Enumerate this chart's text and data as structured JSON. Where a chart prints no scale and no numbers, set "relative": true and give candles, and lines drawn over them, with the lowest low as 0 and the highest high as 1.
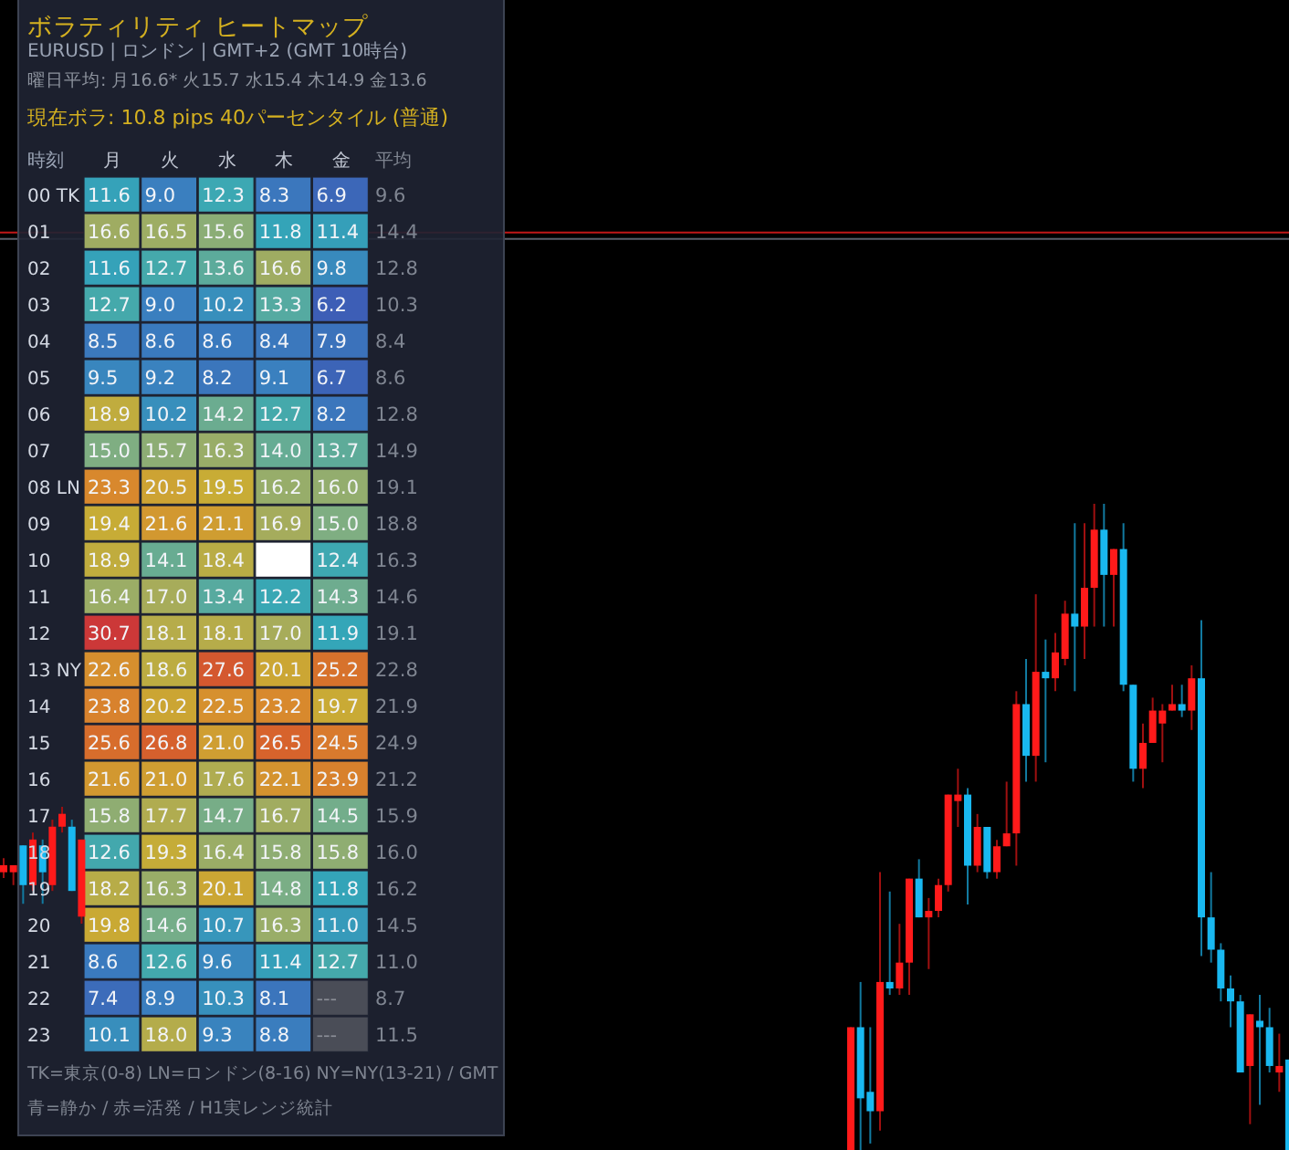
{
  "chart_data": [
    {
      "type": "heatmap",
      "title": "ボラティリティ ヒートマップ",
      "subtitle": "EURUSD | ロンドン | GMT+2 (GMT 10時台)",
      "annotations": [
        "曜日平均: 月16.6* 火15.7 水15.4 木14.9 金13.6",
        "現在ボラ: 10.8 pips  40パーセンタイル (普通)",
        "TK=東京(0-8) LN=ロンドン(8-16) NY=NY(13-21) / GMT",
        "青=静か / 赤=活発 / H1実レンジ統計"
      ],
      "ylabel": "時刻",
      "y2label": "平均",
      "categories": [
        "月",
        "火",
        "水",
        "木",
        "金"
      ],
      "y_categories": [
        "00 TK",
        "01",
        "02",
        "03",
        "04",
        "05",
        "06",
        "07",
        "08 LN",
        "09",
        "10",
        "11",
        "12",
        "13 NY",
        "14",
        "15",
        "16",
        "17",
        "18",
        "19",
        "20",
        "21",
        "22",
        "23"
      ],
      "y2_categories": [
        "9.6",
        "14.4",
        "12.8",
        "10.3",
        "8.4",
        "8.6",
        "12.8",
        "14.9",
        "19.1",
        "18.8",
        "16.3",
        "14.6",
        "19.1",
        "22.8",
        "21.9",
        "24.9",
        "21.2",
        "15.9",
        "16.0",
        "16.2",
        "14.5",
        "11.0",
        "8.7",
        "11.5"
      ],
      "cells": [
        [
          11.6,
          9.0,
          12.3,
          8.3,
          6.9
        ],
        [
          16.6,
          16.5,
          15.6,
          11.8,
          11.4
        ],
        [
          11.6,
          12.7,
          13.6,
          16.6,
          9.8
        ],
        [
          12.7,
          9.0,
          10.2,
          13.3,
          6.2
        ],
        [
          8.5,
          8.6,
          8.6,
          8.4,
          7.9
        ],
        [
          9.5,
          9.2,
          8.2,
          9.1,
          6.7
        ],
        [
          18.9,
          10.2,
          14.2,
          12.7,
          8.2
        ],
        [
          15.0,
          15.7,
          16.3,
          14.0,
          13.7
        ],
        [
          23.3,
          20.5,
          19.5,
          16.2,
          16.0
        ],
        [
          19.4,
          21.6,
          21.1,
          16.9,
          15.0
        ],
        [
          18.9,
          14.1,
          18.4,
          null,
          12.4
        ],
        [
          16.4,
          17.0,
          13.4,
          12.2,
          14.3
        ],
        [
          30.7,
          18.1,
          18.1,
          17.0,
          11.9
        ],
        [
          22.6,
          18.6,
          27.6,
          20.1,
          25.2
        ],
        [
          23.8,
          20.2,
          22.5,
          23.2,
          19.7
        ],
        [
          25.6,
          26.8,
          21.0,
          26.5,
          24.5
        ],
        [
          21.6,
          21.0,
          17.6,
          22.1,
          23.9
        ],
        [
          15.8,
          17.7,
          14.7,
          16.7,
          14.5
        ],
        [
          12.6,
          19.3,
          16.4,
          15.8,
          15.8
        ],
        [
          18.2,
          16.3,
          20.1,
          14.8,
          11.8
        ],
        [
          19.8,
          14.6,
          10.7,
          16.3,
          11.0
        ],
        [
          8.6,
          12.6,
          9.6,
          11.4,
          12.7
        ],
        [
          7.4,
          8.9,
          10.3,
          8.1,
          null
        ],
        [
          10.1,
          18.0,
          9.3,
          8.8,
          null
        ]
      ],
      "cell_labels": [
        [
          "11.6",
          "9.0",
          "12.3",
          "8.3",
          "6.9"
        ],
        [
          "16.6",
          "16.5",
          "15.6",
          "11.8",
          "11.4"
        ],
        [
          "11.6",
          "12.7",
          "13.6",
          "16.6",
          "9.8"
        ],
        [
          "12.7",
          "9.0",
          "10.2",
          "13.3",
          "6.2"
        ],
        [
          "8.5",
          "8.6",
          "8.6",
          "8.4",
          "7.9"
        ],
        [
          "9.5",
          "9.2",
          "8.2",
          "9.1",
          "6.7"
        ],
        [
          "18.9",
          "10.2",
          "14.2",
          "12.7",
          "8.2"
        ],
        [
          "15.0",
          "15.7",
          "16.3",
          "14.0",
          "13.7"
        ],
        [
          "23.3",
          "20.5",
          "19.5",
          "16.2",
          "16.0"
        ],
        [
          "19.4",
          "21.6",
          "21.1",
          "16.9",
          "15.0"
        ],
        [
          "18.9",
          "14.1",
          "18.4",
          null,
          "12.4"
        ],
        [
          "16.4",
          "17.0",
          "13.4",
          "12.2",
          "14.3"
        ],
        [
          "30.7",
          "18.1",
          "18.1",
          "17.0",
          "11.9"
        ],
        [
          "22.6",
          "18.6",
          "27.6",
          "20.1",
          "25.2"
        ],
        [
          "23.8",
          "20.2",
          "22.5",
          "23.2",
          "19.7"
        ],
        [
          "25.6",
          "26.8",
          "21.0",
          "26.5",
          "24.5"
        ],
        [
          "21.6",
          "21.0",
          "17.6",
          "22.1",
          "23.9"
        ],
        [
          "15.8",
          "17.7",
          "14.7",
          "16.7",
          "14.5"
        ],
        [
          "12.6",
          "19.3",
          "16.4",
          "15.8",
          "15.8"
        ],
        [
          "18.2",
          "16.3",
          "20.1",
          "14.8",
          "11.8"
        ],
        [
          "19.8",
          "14.6",
          "10.7",
          "16.3",
          "11.0"
        ],
        [
          "8.6",
          "12.6",
          "9.6",
          "11.4",
          "12.7"
        ],
        [
          "7.4",
          "8.9",
          "10.3",
          "8.1",
          "---"
        ],
        [
          "10.1",
          "18.0",
          "9.3",
          "8.8",
          "---"
        ]
      ]
    },
    {
      "type": "candlestick",
      "relative": true,
      "categories": [
        null,
        null,
        null,
        null,
        null,
        null,
        null,
        null,
        null,
        null,
        null,
        null,
        null,
        null,
        null,
        null,
        null,
        null,
        null,
        null,
        null,
        null,
        null,
        null,
        null,
        null,
        null,
        null,
        null,
        null,
        null,
        null,
        null,
        null,
        null,
        null,
        null,
        null,
        null,
        null,
        null,
        null,
        null,
        null,
        null,
        null
      ],
      "ohlc": [
        [
          0,
          0.19,
          0,
          0.19
        ],
        [
          0.19,
          0.26,
          0,
          0.08
        ],
        [
          0.09,
          0.19,
          0.01,
          0.06
        ],
        [
          0.06,
          0.43,
          0.03,
          0.26
        ],
        [
          0.26,
          0.4,
          0.24,
          0.25
        ],
        [
          0.25,
          0.35,
          0.24,
          0.29
        ],
        [
          0.29,
          0.42,
          0.24,
          0.42
        ],
        [
          0.42,
          0.45,
          0.36,
          0.36
        ],
        [
          0.36,
          0.39,
          0.28,
          0.37
        ],
        [
          0.37,
          0.42,
          0.36,
          0.41
        ],
        [
          0.41,
          0.55,
          0.4,
          0.55
        ],
        [
          0.54,
          0.59,
          0.5,
          0.55
        ],
        [
          0.55,
          0.56,
          0.38,
          0.44
        ],
        [
          0.44,
          0.52,
          0.43,
          0.5
        ],
        [
          0.5,
          0.5,
          0.42,
          0.43
        ],
        [
          0.43,
          0.48,
          0.42,
          0.47
        ],
        [
          0.47,
          0.57,
          0.47,
          0.49
        ],
        [
          0.49,
          0.71,
          0.44,
          0.69
        ],
        [
          0.69,
          0.76,
          0.57,
          0.61
        ],
        [
          0.61,
          0.86,
          0.57,
          0.74
        ],
        [
          0.74,
          0.79,
          0.6,
          0.73
        ],
        [
          0.73,
          0.8,
          0.71,
          0.77
        ],
        [
          0.76,
          0.85,
          0.75,
          0.83
        ],
        [
          0.83,
          0.97,
          0.71,
          0.81
        ],
        [
          0.81,
          0.97,
          0.76,
          0.87
        ],
        [
          0.87,
          1,
          0.81,
          0.96
        ],
        [
          0.96,
          1,
          0.81,
          0.89
        ],
        [
          0.89,
          0.93,
          0.81,
          0.93
        ],
        [
          0.93,
          0.97,
          0.71,
          0.72
        ],
        [
          0.72,
          0.72,
          0.57,
          0.59
        ],
        [
          0.59,
          0.66,
          0.56,
          0.63
        ],
        [
          0.63,
          0.7,
          0.63,
          0.68
        ],
        [
          0.66,
          0.69,
          0.6,
          0.68
        ],
        [
          0.68,
          0.72,
          0.68,
          0.69
        ],
        [
          0.69,
          0.72,
          0.67,
          0.68
        ],
        [
          0.68,
          0.75,
          0.65,
          0.73
        ],
        [
          0.73,
          0.82,
          0.3,
          0.36
        ],
        [
          0.36,
          0.43,
          0.29,
          0.31
        ],
        [
          0.31,
          0.32,
          0.23,
          0.25
        ],
        [
          0.25,
          0.27,
          0.19,
          0.23
        ],
        [
          0.23,
          0.24,
          0.12,
          0.12
        ],
        [
          0.13,
          0.21,
          0.04,
          0.21
        ],
        [
          0.2,
          0.24,
          0.07,
          0.19
        ],
        [
          0.19,
          0.22,
          0.12,
          0.13
        ],
        [
          0.12,
          0.18,
          0.09,
          0.13
        ],
        [
          0.14,
          0.14,
          0,
          0
        ]
      ],
      "ref_lines": [
        {
          "axis": "y",
          "value": 1.42,
          "color": "#c01818"
        },
        {
          "axis": "y",
          "value": 1.41,
          "color": "#5a5f6a"
        }
      ]
    },
    {
      "type": "candlestick",
      "relative": true,
      "categories": [
        null,
        null,
        null,
        null,
        null,
        null,
        null,
        null,
        null
      ],
      "ohlc": [
        [
          0.44,
          0.56,
          0.39,
          0.5
        ],
        [
          0.44,
          0.5,
          0.33,
          0.5
        ],
        [
          0.67,
          0.67,
          0.17,
          0.33
        ],
        [
          0.33,
          0.78,
          0.28,
          0.72
        ],
        [
          0.67,
          0.72,
          0.17,
          0.44
        ],
        [
          0.33,
          0.89,
          0.28,
          0.83
        ],
        [
          0.83,
          1,
          0.78,
          0.94
        ],
        [
          0.83,
          0.89,
          0.28,
          0.28
        ],
        [
          0.06,
          0.72,
          0,
          0.72
        ]
      ]
    }
  ]
}
